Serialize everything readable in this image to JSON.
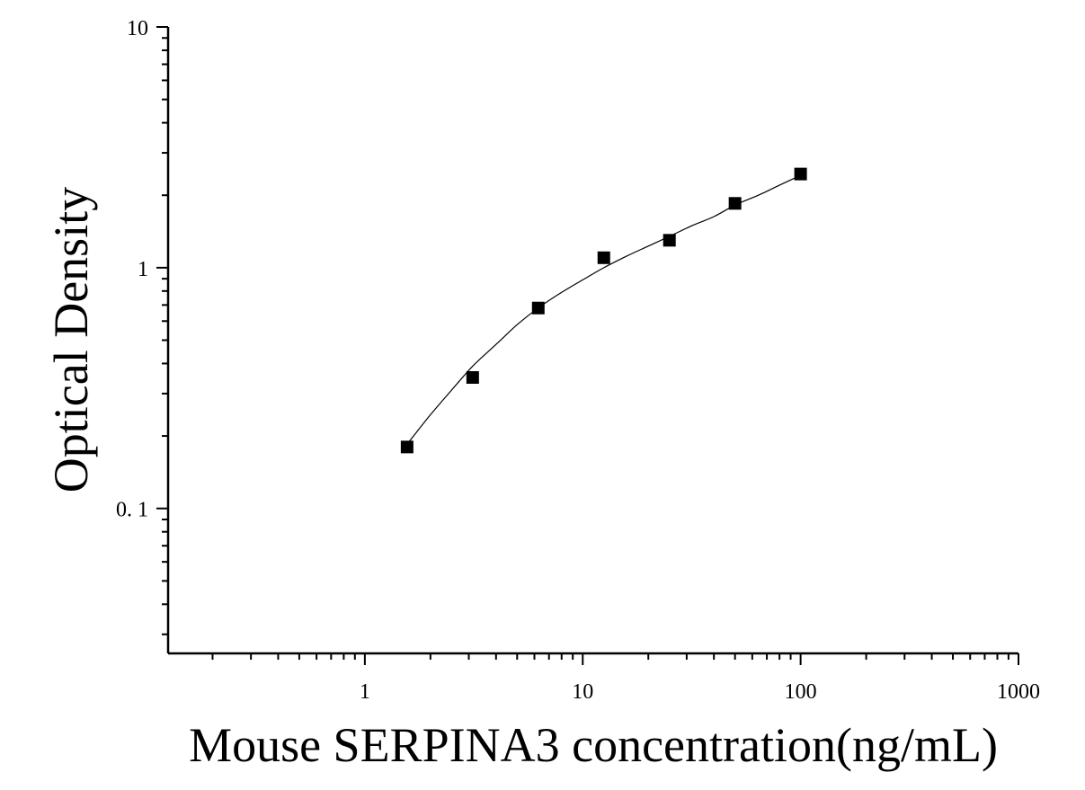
{
  "chart_data": {
    "type": "scatter",
    "title": "",
    "xlabel": "Mouse SERPINA3 concentration(ng/mL)",
    "ylabel": "Optical Density",
    "x_scale": "log",
    "y_scale": "log",
    "xlim": [
      0.125,
      1000
    ],
    "ylim": [
      0.025,
      10
    ],
    "x_ticks": [
      {
        "value": 1,
        "label": "1"
      },
      {
        "value": 10,
        "label": "10"
      },
      {
        "value": 100,
        "label": "100"
      },
      {
        "value": 1000,
        "label": "1000"
      }
    ],
    "y_ticks": [
      {
        "value": 0.1,
        "label": "0. 1"
      },
      {
        "value": 1,
        "label": "1"
      },
      {
        "value": 10,
        "label": "10"
      }
    ],
    "grid": false,
    "legend": "none",
    "series": [
      {
        "kind": "points",
        "marker": "square",
        "color": "#000000",
        "x": [
          1.5625,
          3.125,
          6.25,
          12.5,
          25,
          50,
          100
        ],
        "y": [
          0.18,
          0.35,
          0.68,
          1.1,
          1.3,
          1.85,
          2.45
        ]
      },
      {
        "kind": "fit-curve",
        "color": "#000000",
        "x": [
          1.6,
          2.0,
          2.5,
          3.125,
          4,
          5,
          6.25,
          8,
          10,
          12.5,
          16,
          20,
          25,
          32,
          40,
          50,
          64,
          80,
          100
        ],
        "y": [
          0.19,
          0.245,
          0.31,
          0.39,
          0.48,
          0.58,
          0.68,
          0.79,
          0.89,
          1.0,
          1.12,
          1.23,
          1.35,
          1.5,
          1.63,
          1.82,
          2.0,
          2.2,
          2.42
        ]
      }
    ]
  }
}
